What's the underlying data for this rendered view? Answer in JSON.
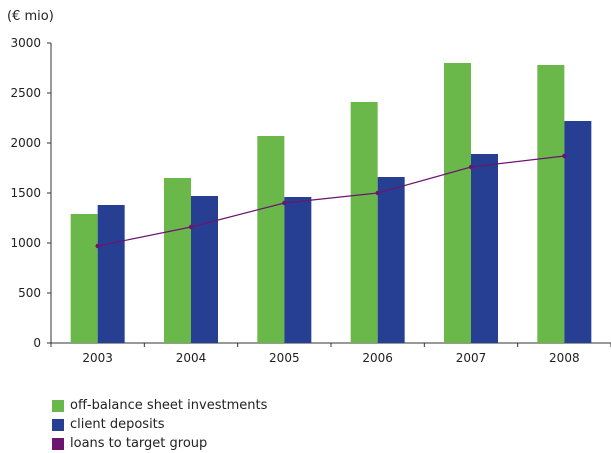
{
  "chart_data": {
    "type": "bar",
    "unit_label": "(€ mio)",
    "categories": [
      "2003",
      "2004",
      "2005",
      "2006",
      "2007",
      "2008"
    ],
    "series": [
      {
        "name": "off-balance sheet investments",
        "kind": "bar",
        "color": "#6ab84a",
        "values": [
          1290,
          1650,
          2070,
          2410,
          2800,
          2780
        ]
      },
      {
        "name": "client deposits",
        "kind": "bar",
        "color": "#273f93",
        "values": [
          1380,
          1470,
          1460,
          1660,
          1890,
          2220
        ]
      },
      {
        "name": "loans to target group",
        "kind": "line",
        "color": "#6b1570",
        "values": [
          970,
          1160,
          1400,
          1500,
          1760,
          1870
        ]
      }
    ],
    "y_ticks": [
      "0",
      "500",
      "1000",
      "1500",
      "2000",
      "2500",
      "3000"
    ],
    "ylim": [
      0,
      3000
    ],
    "grid": false,
    "legend_position": "bottom-left"
  }
}
